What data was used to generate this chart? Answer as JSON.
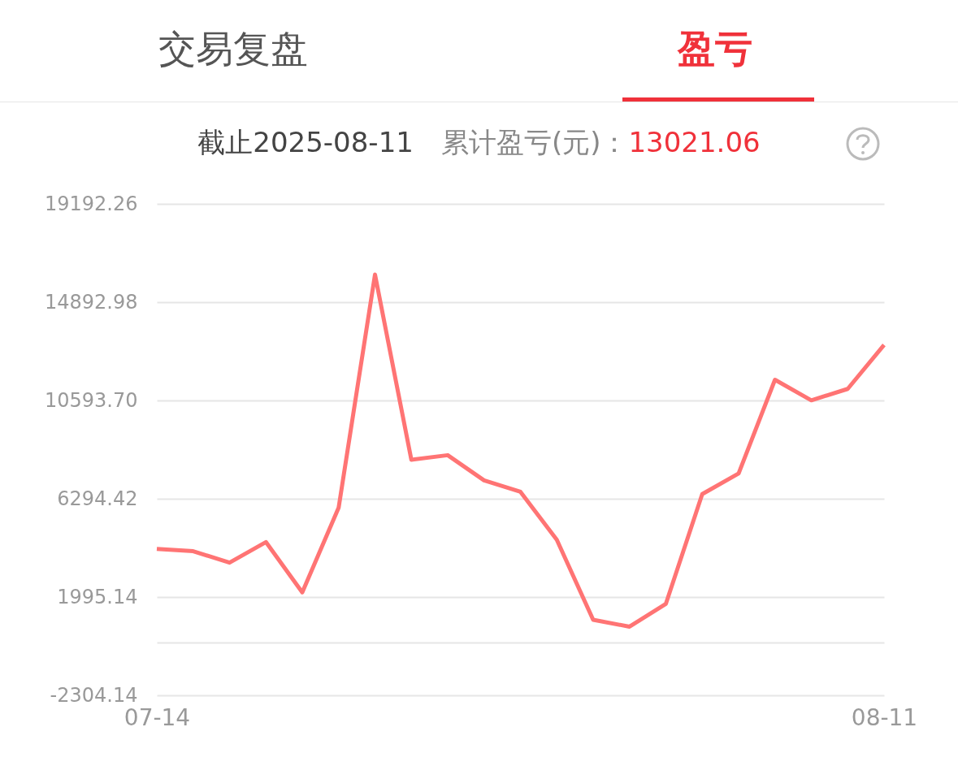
{
  "chart_data": {
    "type": "line",
    "title": "截止2025-08-11",
    "annotations": [
      "交易复盘",
      "盈亏",
      "累计盈亏(元)：",
      "13021.06"
    ],
    "categories": [
      "07-14",
      null,
      null,
      null,
      null,
      null,
      null,
      null,
      null,
      null,
      null,
      null,
      null,
      null,
      null,
      null,
      null,
      null,
      null,
      null,
      "08-11"
    ],
    "series": [
      {
        "color": "#ff7474",
        "values": [
          4100,
          4000,
          3500,
          4400,
          2200,
          5900,
          16100,
          8000,
          8200,
          7100,
          6600,
          4500,
          1000,
          700,
          1700,
          6500,
          7400,
          11500,
          10600,
          11100,
          13021.06
        ]
      }
    ],
    "ylim": [
      -2304.14,
      19192.26
    ],
    "yticks": [
      -2304.14,
      {
        "value": 0,
        "label": null
      },
      1995.14,
      6294.42,
      {
        "value": 10593.7,
        "label": "10593.70"
      },
      14892.98,
      19192.26
    ],
    "grid": "y",
    "marker": "none",
    "line_style": "solid"
  }
}
